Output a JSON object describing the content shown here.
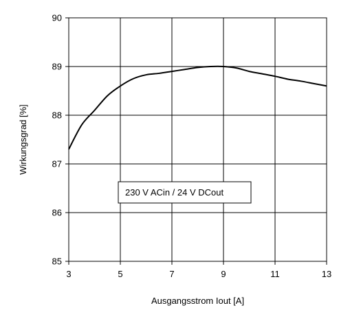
{
  "chart_data": {
    "type": "line",
    "xlabel": "Ausgangsstrom Iout [A]",
    "ylabel": "Wirkungsgrad [%]",
    "xlim": [
      3,
      13
    ],
    "ylim": [
      85,
      90
    ],
    "xticks": [
      3,
      5,
      7,
      9,
      11,
      13
    ],
    "yticks": [
      85,
      86,
      87,
      88,
      89,
      90
    ],
    "x_tick_labels": [
      "3",
      "5",
      "7",
      "9",
      "11",
      "13"
    ],
    "y_tick_labels": [
      "85",
      "86",
      "87",
      "88",
      "89",
      "90"
    ],
    "grid": true,
    "annotation": "230 V ACin / 24 V DCout",
    "series": [
      {
        "x": [
          3.0,
          3.5,
          4.0,
          4.5,
          5.0,
          5.5,
          6.0,
          6.5,
          7.0,
          7.5,
          8.0,
          8.5,
          9.0,
          9.5,
          10.0,
          10.5,
          11.0,
          11.5,
          12.0,
          12.5,
          13.0
        ],
        "y": [
          87.3,
          87.8,
          88.1,
          88.4,
          88.6,
          88.75,
          88.83,
          88.86,
          88.9,
          88.94,
          88.98,
          89.0,
          89.0,
          88.97,
          88.9,
          88.85,
          88.8,
          88.74,
          88.7,
          88.65,
          88.6
        ]
      }
    ]
  }
}
